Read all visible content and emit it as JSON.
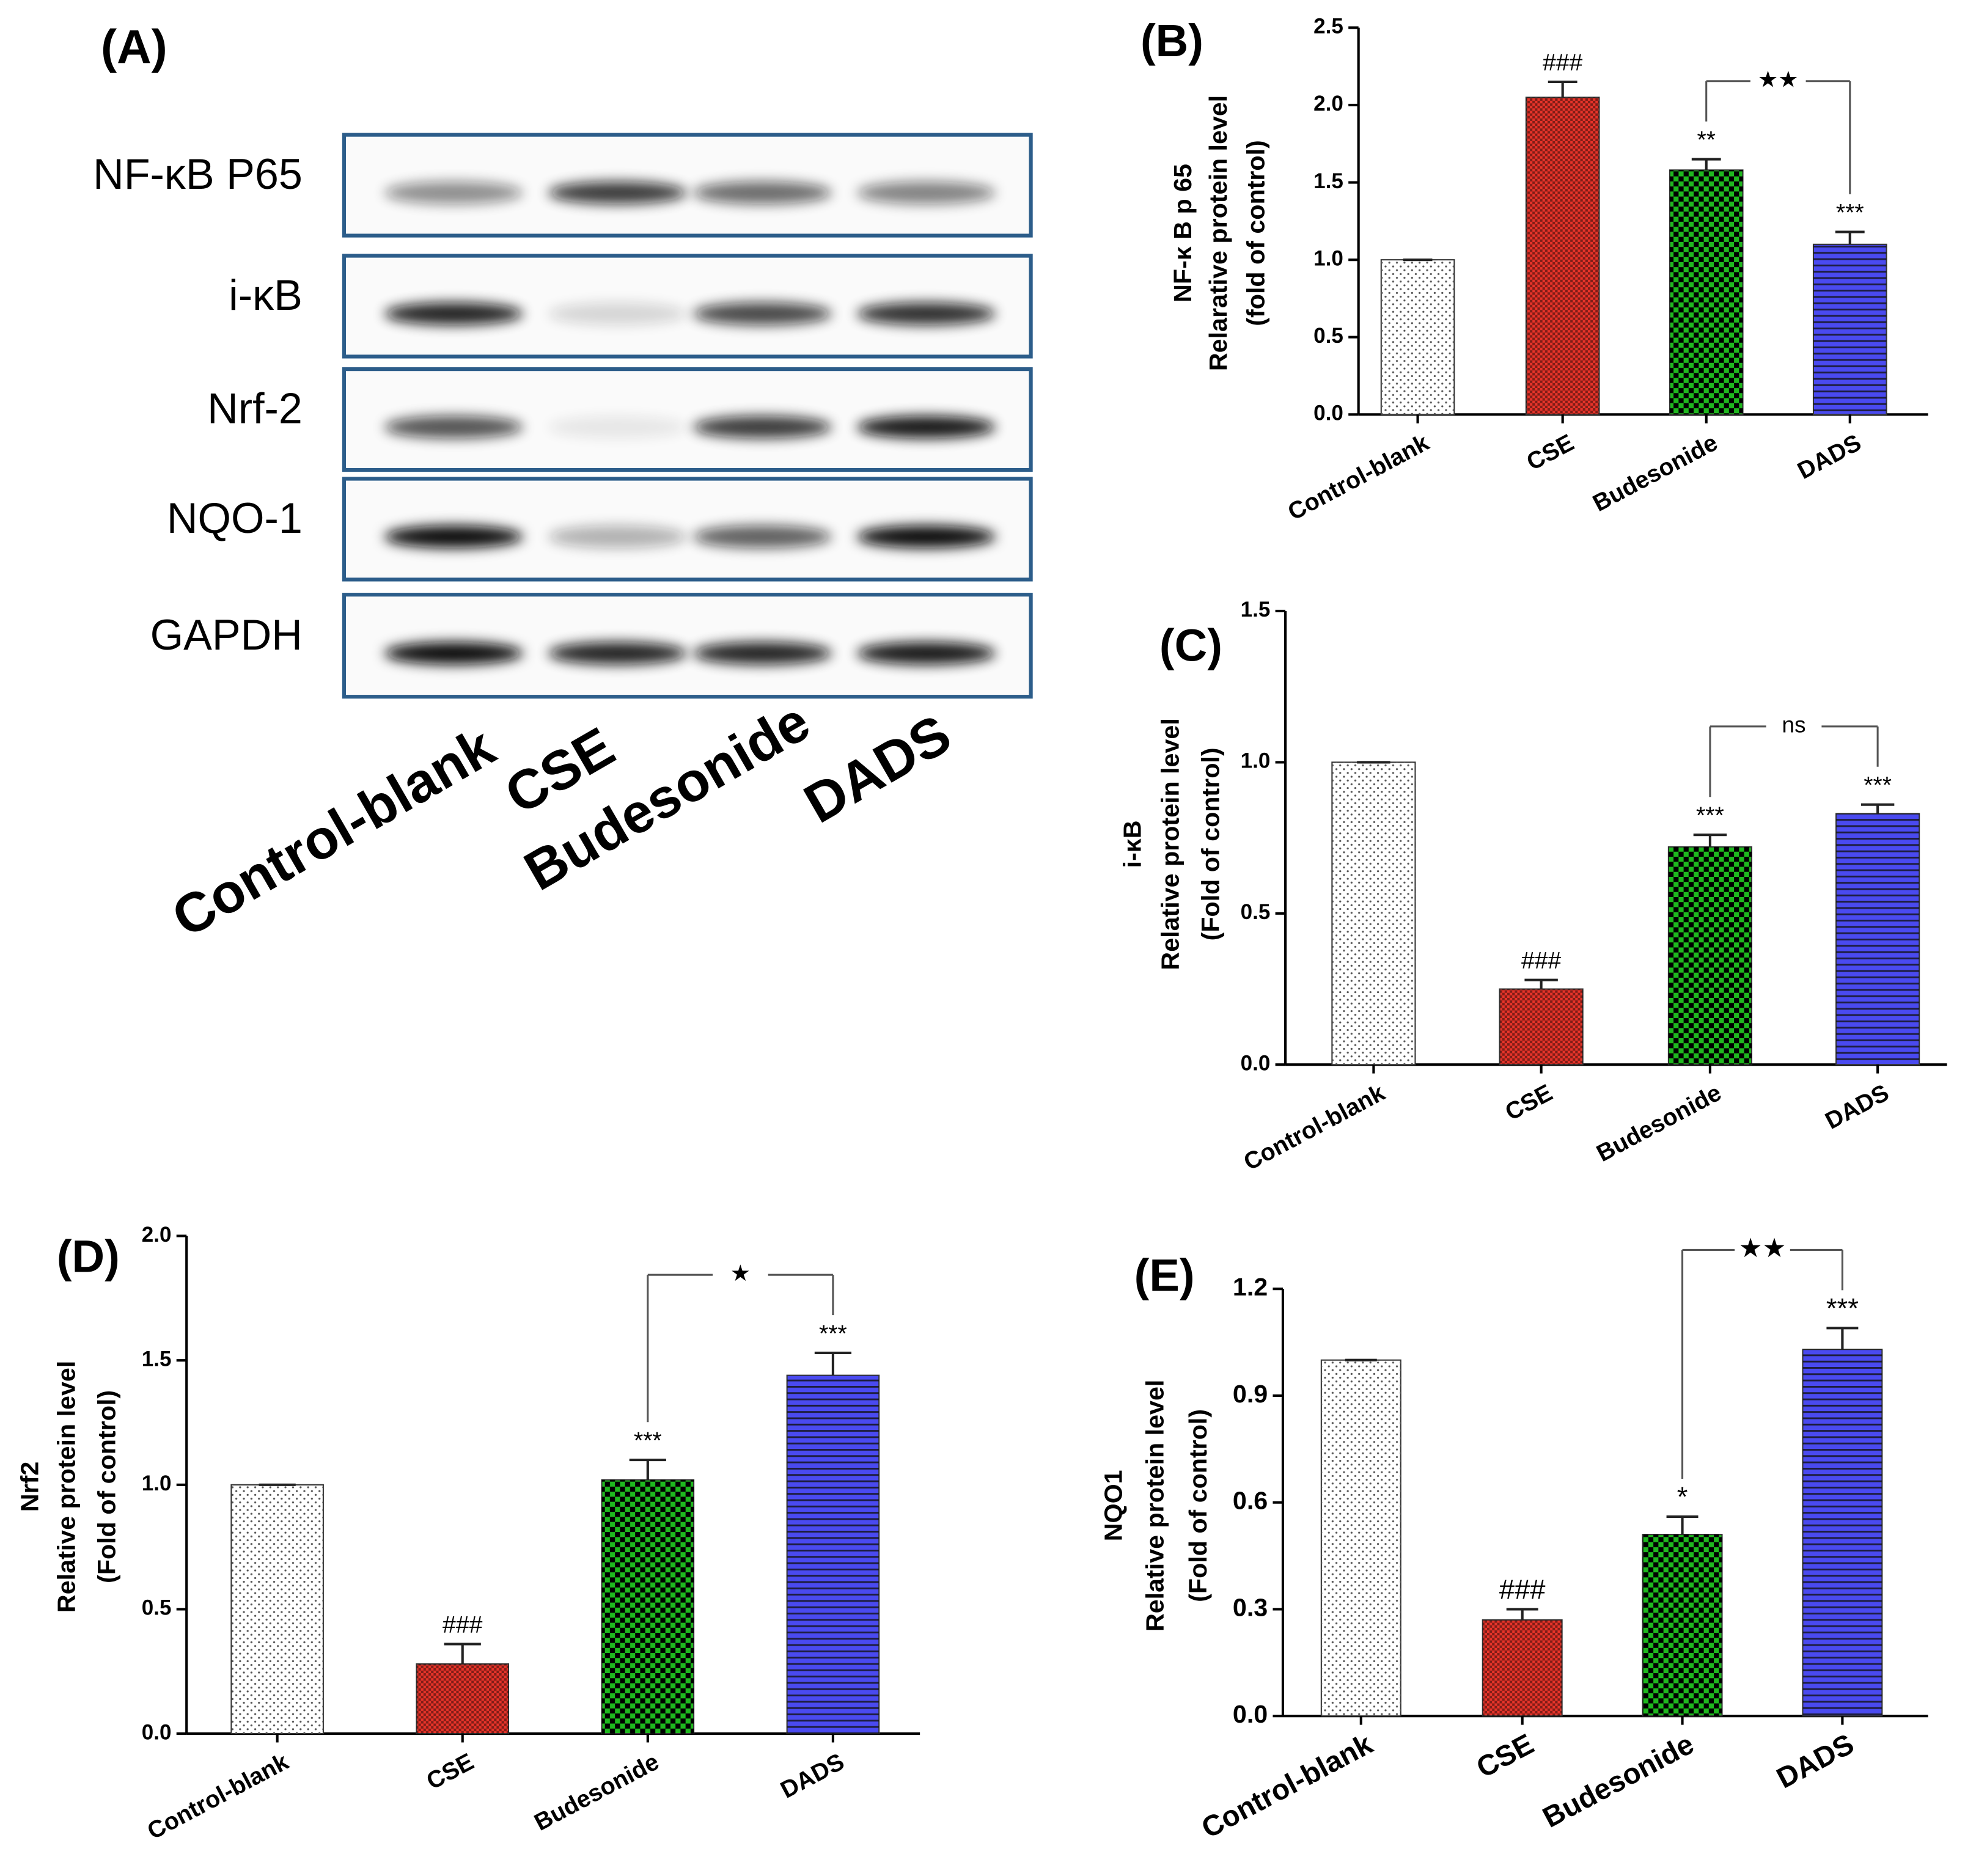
{
  "blot": {
    "panel_label": "(A)",
    "proteins": [
      "NF-κB P65",
      "i-κB",
      "Nrf-2",
      "NQO-1",
      "GAPDH"
    ],
    "lanes": [
      "Control-blank",
      "CSE",
      "Budesonide",
      "DADS"
    ]
  },
  "chart_data": [
    {
      "type": "bar",
      "panel_label": "(B)",
      "ylabel": [
        "NF-κ B p 65",
        "Relarative protein  level",
        "(fold of control)"
      ],
      "categories": [
        "Control-blank",
        "CSE",
        "Budesonide",
        "DADS"
      ],
      "values": [
        1.0,
        2.05,
        1.58,
        1.1
      ],
      "errors": [
        0,
        0.1,
        0.07,
        0.08
      ],
      "colors": [
        "#ffffff",
        "#e8342a",
        "#1fb81f",
        "#4a4af0"
      ],
      "annotations": [
        null,
        "###",
        "**",
        "***"
      ],
      "bracket": {
        "from": 2,
        "to": 3,
        "label": "★★"
      },
      "ylim": [
        0,
        2.5
      ],
      "yticks": [
        {
          "value": 0,
          "label": "0.0"
        },
        {
          "value": 0.5,
          "label": "0.5"
        },
        {
          "value": 1,
          "label": "1.0"
        },
        {
          "value": 1.5,
          "label": "1.5"
        },
        {
          "value": 2,
          "label": "2.0"
        },
        {
          "value": 2.5,
          "label": "2.5"
        }
      ]
    },
    {
      "type": "bar",
      "panel_label": "(C)",
      "ylabel": [
        "i-κB",
        "Relative protein level",
        "(Fold of control)"
      ],
      "categories": [
        "Control-blank",
        "CSE",
        "Budesonide",
        "DADS"
      ],
      "values": [
        1.0,
        0.25,
        0.72,
        0.83
      ],
      "errors": [
        0,
        0.03,
        0.04,
        0.03
      ],
      "colors": [
        "#ffffff",
        "#e8342a",
        "#1fb81f",
        "#4a4af0"
      ],
      "annotations": [
        null,
        "###",
        "***",
        "***"
      ],
      "bracket": {
        "from": 2,
        "to": 3,
        "label": "ns"
      },
      "ylim": [
        0,
        1.5
      ],
      "yticks": [
        {
          "value": 0,
          "label": "0.0"
        },
        {
          "value": 0.5,
          "label": "0.5"
        },
        {
          "value": 1,
          "label": "1.0"
        },
        {
          "value": 1.5,
          "label": "1.5"
        }
      ]
    },
    {
      "type": "bar",
      "panel_label": "(D)",
      "ylabel": [
        "Nrf2",
        "Relative protein level",
        "(Fold of control)"
      ],
      "categories": [
        "Control-blank",
        "CSE",
        "Budesonide",
        "DADS"
      ],
      "values": [
        1.0,
        0.28,
        1.02,
        1.44
      ],
      "errors": [
        0,
        0.08,
        0.08,
        0.09
      ],
      "colors": [
        "#ffffff",
        "#e8342a",
        "#1fb81f",
        "#4a4af0"
      ],
      "annotations": [
        null,
        "###",
        "***",
        "***"
      ],
      "bracket": {
        "from": 2,
        "to": 3,
        "label": "★"
      },
      "ylim": [
        0,
        2
      ],
      "yticks": [
        {
          "value": 0,
          "label": "0.0"
        },
        {
          "value": 0.5,
          "label": "0.5"
        },
        {
          "value": 1,
          "label": "1.0"
        },
        {
          "value": 1.5,
          "label": "1.5"
        },
        {
          "value": 2,
          "label": "2.0"
        }
      ]
    },
    {
      "type": "bar",
      "panel_label": "(E)",
      "ylabel": [
        "NQO1",
        "Relative protein level",
        "(Fold of control)"
      ],
      "categories": [
        "Control-blank",
        "CSE",
        "Budesonide",
        "DADS"
      ],
      "values": [
        1.0,
        0.27,
        0.51,
        1.03
      ],
      "errors": [
        0,
        0.03,
        0.05,
        0.06
      ],
      "colors": [
        "#ffffff",
        "#e8342a",
        "#1fb81f",
        "#4a4af0"
      ],
      "annotations": [
        null,
        "###",
        "*",
        "***"
      ],
      "bracket": {
        "from": 2,
        "to": 3,
        "label": "★★"
      },
      "ylim": [
        0,
        1.2
      ],
      "yticks": [
        {
          "value": 0,
          "label": "0.0"
        },
        {
          "value": 0.3,
          "label": "0.3"
        },
        {
          "value": 0.6,
          "label": "0.6"
        },
        {
          "value": 0.9,
          "label": "0.9"
        },
        {
          "value": 1.2,
          "label": "1.2"
        }
      ]
    }
  ]
}
